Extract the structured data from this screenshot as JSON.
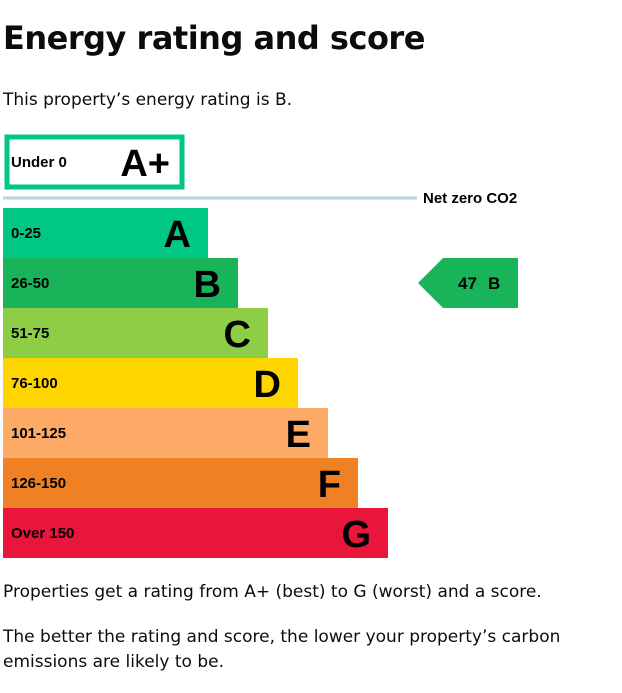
{
  "page": {
    "title": "Energy rating and score",
    "intro": "This property’s energy rating is B.",
    "footer_line_1": "Properties get a rating from A+ (best) to G (worst) and a score.",
    "footer_line_2": "The better the rating and score, the lower your property’s carbon emissions are likely to be."
  },
  "chart_data": {
    "type": "bar",
    "title": "",
    "net_zero": {
      "label": "Net zero CO2",
      "band": {
        "band": "A+",
        "range": "Under 0",
        "color": "#00c781"
      }
    },
    "bands": [
      {
        "band": "A",
        "range": "0-25",
        "color": "#00c781"
      },
      {
        "band": "B",
        "range": "26-50",
        "color": "#19b459"
      },
      {
        "band": "C",
        "range": "51-75",
        "color": "#8dce46"
      },
      {
        "band": "D",
        "range": "76-100",
        "color": "#ffd500"
      },
      {
        "band": "E",
        "range": "101-125",
        "color": "#fcaa65"
      },
      {
        "band": "F",
        "range": "126-150",
        "color": "#ef8023"
      },
      {
        "band": "G",
        "range": "Over 150",
        "color": "#e9153b"
      }
    ],
    "current_rating": {
      "score": 47,
      "band": "B",
      "color": "#19b459"
    },
    "separator_color": "#b1d6e0"
  }
}
